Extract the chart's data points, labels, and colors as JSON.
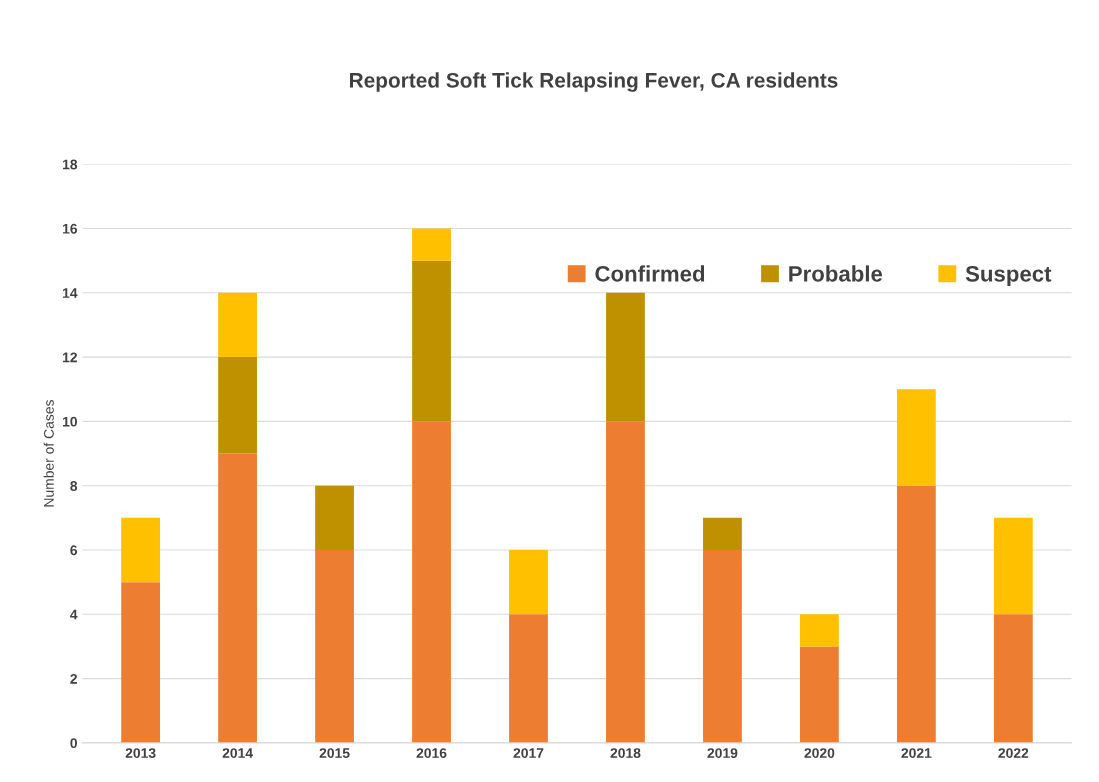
{
  "chart_data": {
    "type": "bar",
    "title": "Reported Soft Tick Relapsing Fever, CA residents",
    "ylabel": "Number of Cases",
    "categories": [
      "2013",
      "2014",
      "2015",
      "2016",
      "2017",
      "2018",
      "2019",
      "2020",
      "2021",
      "2022"
    ],
    "stacked": true,
    "series": [
      {
        "name": "Confirmed",
        "color": "#ed7d31",
        "values": [
          5,
          9,
          6,
          10,
          4,
          10,
          6,
          3,
          8,
          4
        ]
      },
      {
        "name": "Probable",
        "color": "#bf9000",
        "values": [
          0,
          3,
          2,
          5,
          0,
          4,
          1,
          0,
          0,
          0
        ]
      },
      {
        "name": "Suspect",
        "color": "#ffc000",
        "values": [
          2,
          2,
          0,
          1,
          2,
          0,
          0,
          1,
          3,
          3
        ]
      }
    ],
    "ylim": [
      0,
      18
    ],
    "yticks": [
      0,
      2,
      4,
      6,
      8,
      10,
      12,
      14,
      16,
      18
    ],
    "grid": "y",
    "legend": "top right"
  }
}
